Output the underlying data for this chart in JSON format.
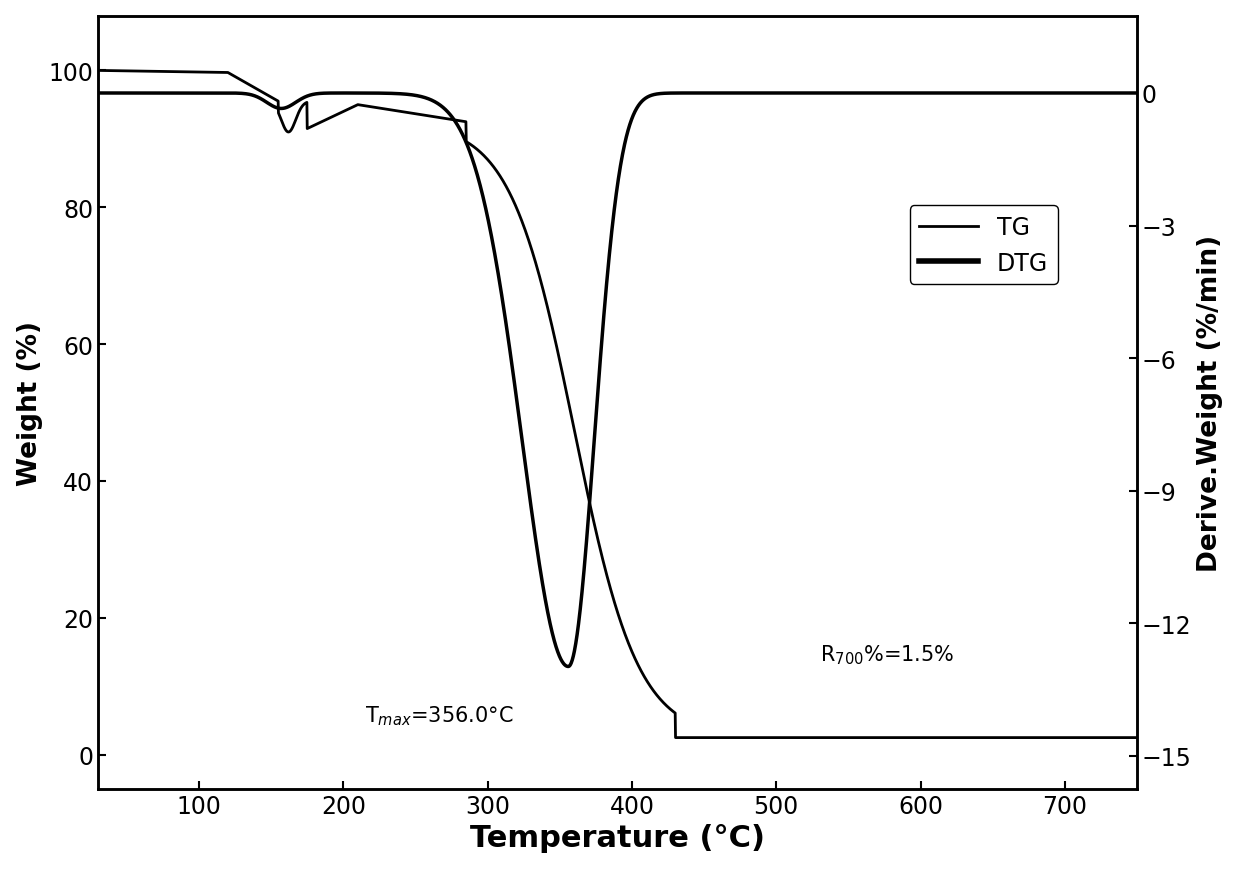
{
  "title": "",
  "xlabel": "Temperature (°C)",
  "ylabel_left": "Weight (%)",
  "ylabel_right": "Derive.Weight (%/min)",
  "xlim": [
    30,
    750
  ],
  "ylim_left": [
    -5,
    108
  ],
  "ylim_right": [
    -15.75,
    1.75
  ],
  "yticks_left": [
    0,
    20,
    40,
    60,
    80,
    100
  ],
  "yticks_right": [
    0,
    -3,
    -6,
    -9,
    -12,
    -15
  ],
  "xticks": [
    100,
    200,
    300,
    400,
    500,
    600,
    700
  ],
  "tg_color": "#000000",
  "dtg_color": "#000000",
  "tg_linewidth": 2.0,
  "dtg_linewidth": 2.5,
  "background_color": "#ffffff",
  "annotation_tmax": "T$_{max}$=356.0°C",
  "annotation_r700": "R$_{700}$%=1.5%",
  "legend_entries": [
    "TG",
    "DTG"
  ],
  "figsize": [
    12.4,
    8.7
  ],
  "dpi": 100
}
